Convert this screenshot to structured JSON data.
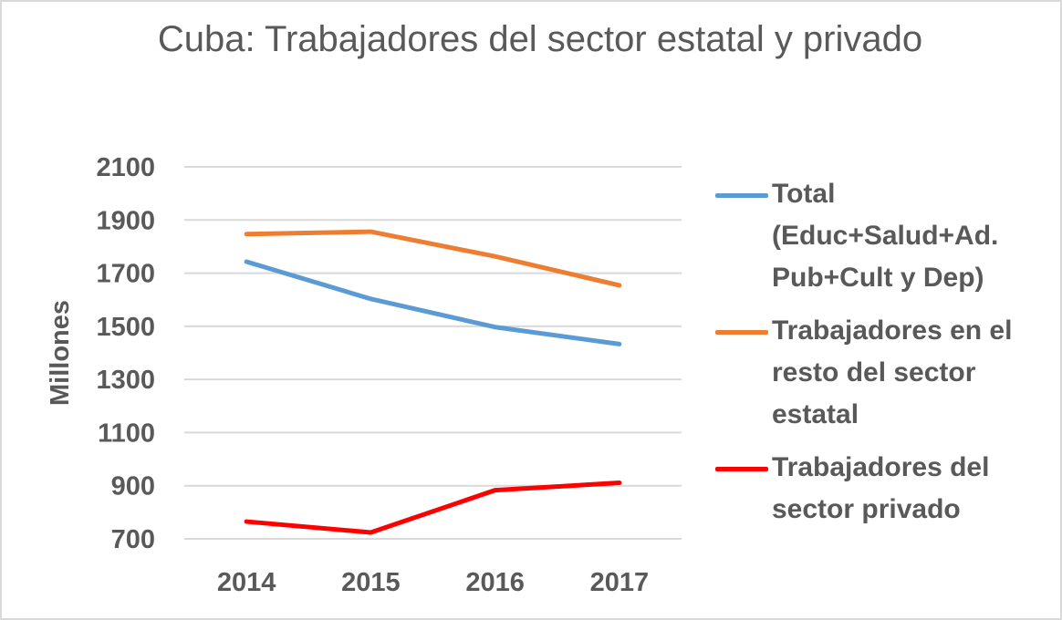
{
  "chart_data": {
    "type": "line",
    "title": "Cuba: Trabajadores del sector estatal y privado",
    "xlabel": "",
    "ylabel": "Millones",
    "categories": [
      "2014",
      "2015",
      "2016",
      "2017"
    ],
    "yticks": [
      "700",
      "900",
      "1100",
      "1300",
      "1500",
      "1700",
      "1900",
      "2100"
    ],
    "ylim": [
      700,
      2100
    ],
    "grid": true,
    "legend_position": "right",
    "series": [
      {
        "name": "Total (Educ+Salud+Ad. Pub+Cult y Dep)",
        "color": "#5b9bd5",
        "values": [
          1743,
          1603,
          1497,
          1433
        ]
      },
      {
        "name": "Trabajadores en el resto del sector estatal",
        "color": "#ed7d31",
        "values": [
          1847,
          1856,
          1763,
          1654
        ]
      },
      {
        "name": "Trabajadores del sector privado",
        "color": "#ff0000",
        "values": [
          765,
          724,
          883,
          911
        ]
      }
    ]
  }
}
